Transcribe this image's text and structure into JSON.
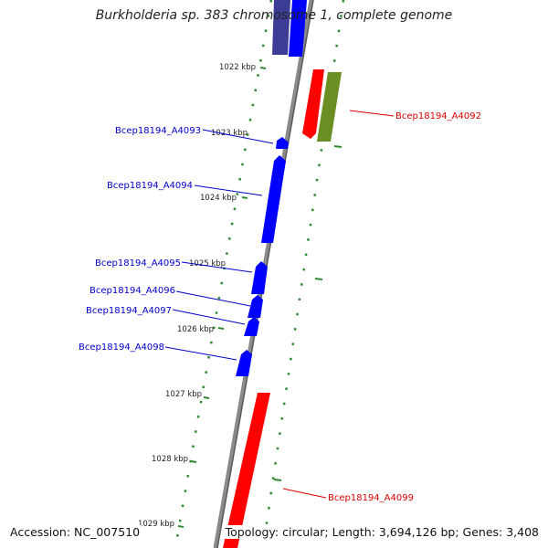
{
  "title": "Burkholderia sp. 383 chromosome 1, complete genome",
  "accession_text": "Accession: NC_007510",
  "topology_text": "Topology: circular; Length: 3,694,126 bp; Genes: 3,408",
  "colors": {
    "backbone": "#888888",
    "tick": "#2e8b2e",
    "forward_gene": "#ff0000",
    "reverse_gene": "#0000ff",
    "reverse_gene_dim": "#3c3c96",
    "green_gene": "#6b8e23",
    "label_red": "#dd0000",
    "label_blue": "#0000cc"
  },
  "kbp_labels": [
    "1022 kbp",
    "1023 kbp",
    "1024 kbp",
    "1025 kbp",
    "1026 kbp",
    "1027 kbp",
    "1028 kbp",
    "1029 kbp"
  ],
  "gene_labels": [
    {
      "text": "Bcep18194_A4092",
      "strand": "forward"
    },
    {
      "text": "Bcep18194_A4093",
      "strand": "reverse"
    },
    {
      "text": "Bcep18194_A4094",
      "strand": "reverse"
    },
    {
      "text": "Bcep18194_A4095",
      "strand": "reverse"
    },
    {
      "text": "Bcep18194_A4096",
      "strand": "reverse"
    },
    {
      "text": "Bcep18194_A4097",
      "strand": "reverse"
    },
    {
      "text": "Bcep18194_A4098",
      "strand": "reverse"
    },
    {
      "text": "Bcep18194_A4099",
      "strand": "forward"
    }
  ]
}
